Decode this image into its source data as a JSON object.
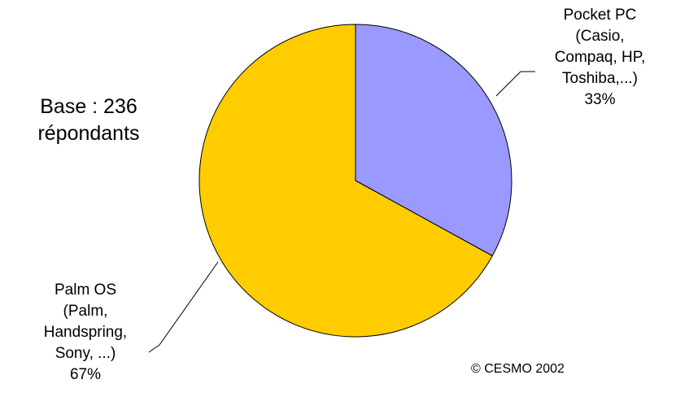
{
  "chart_data": {
    "type": "pie",
    "slices": [
      {
        "name": "Pocket PC",
        "label_lines": [
          "Pocket PC",
          "(Casio,",
          "Compaq, HP,",
          "Toshiba,...)"
        ],
        "value": 33,
        "value_label": "33%",
        "color": "#9999FF"
      },
      {
        "name": "Palm OS",
        "label_lines": [
          "Palm OS",
          "(Palm,",
          "Handspring,",
          "Sony, ...)"
        ],
        "value": 67,
        "value_label": "67%",
        "color": "#FFCC00"
      }
    ],
    "start_angle": "12 o'clock",
    "direction": "clockwise"
  },
  "annotations": {
    "base_line1": "Base : 236",
    "base_line2": "répondants",
    "copyright": "© CESMO 2002"
  }
}
